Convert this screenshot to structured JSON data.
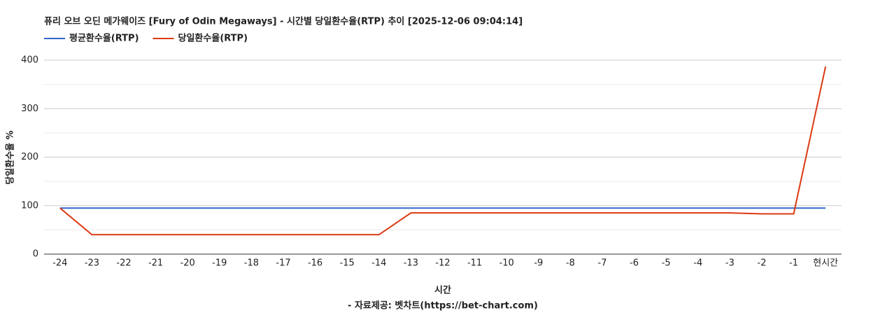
{
  "chart_data": {
    "type": "line",
    "title": "퓨리 오브 오딘 메가웨이즈 [Fury of Odin Megaways] - 시간별 당일환수율(RTP) 추이 [2025-12-06 09:04:14]",
    "x_label": "시간",
    "y_label": "당일환수율 %",
    "source": "- 자료제공: 벳차트(https://bet-chart.com)",
    "categories": [
      "-24",
      "-23",
      "-22",
      "-21",
      "-20",
      "-19",
      "-18",
      "-17",
      "-16",
      "-15",
      "-14",
      "-13",
      "-12",
      "-11",
      "-10",
      "-9",
      "-8",
      "-7",
      "-6",
      "-5",
      "-4",
      "-3",
      "-2",
      "-1",
      "현시간"
    ],
    "series": [
      {
        "name": "평균환수율(RTP)",
        "color": "#3366cc",
        "values": [
          95,
          95,
          95,
          95,
          95,
          95,
          95,
          95,
          95,
          95,
          95,
          95,
          95,
          95,
          95,
          95,
          95,
          95,
          95,
          95,
          95,
          95,
          95,
          95,
          95
        ]
      },
      {
        "name": "당일환수율(RTP)",
        "color": "#dc3912",
        "values": [
          95,
          40,
          40,
          40,
          40,
          40,
          40,
          40,
          40,
          40,
          40,
          85,
          85,
          85,
          85,
          85,
          85,
          85,
          85,
          85,
          85,
          85,
          83,
          83,
          387
        ]
      }
    ],
    "ylim": [
      0,
      400
    ],
    "yticks": [
      0,
      100,
      200,
      300,
      400
    ],
    "minor_yticks": [
      50,
      150,
      250,
      350
    ],
    "grid": true
  }
}
